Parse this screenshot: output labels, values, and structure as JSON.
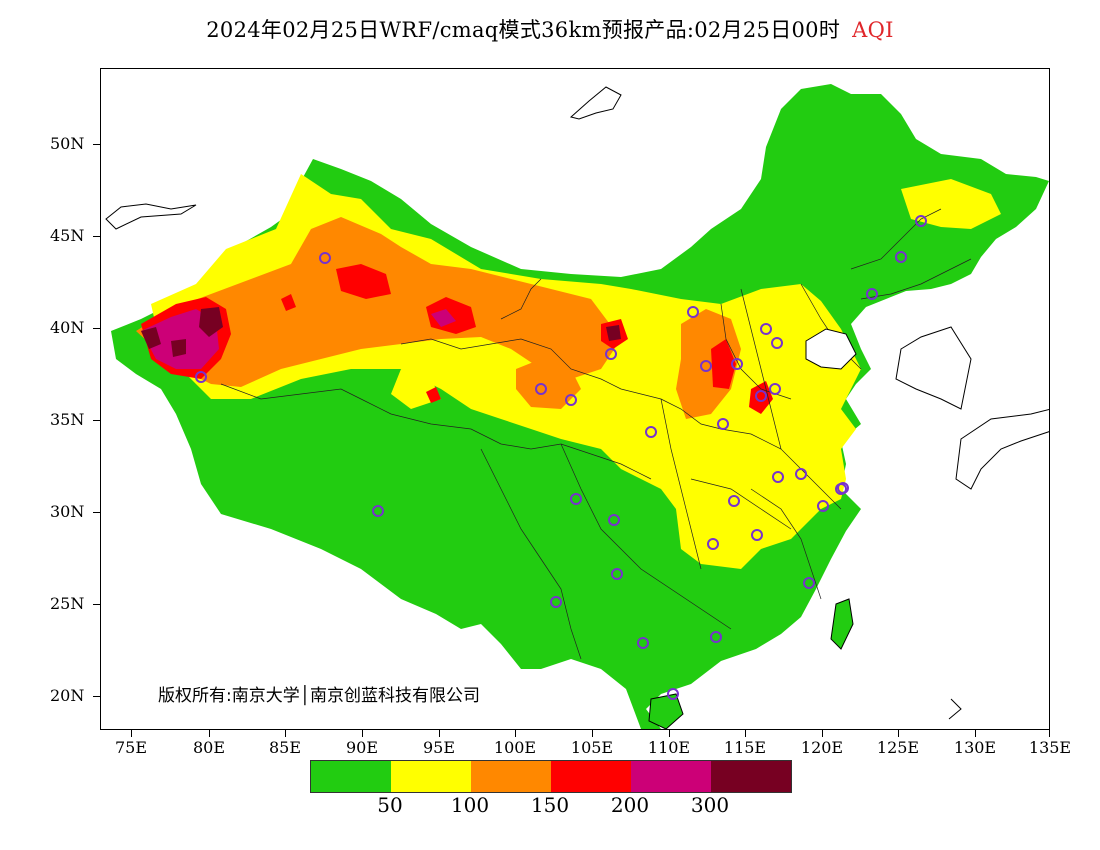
{
  "title": {
    "main": "2024年02月25日WRF/cmaq模式36km预报产品:02月25日00时",
    "variable": "AQI"
  },
  "map": {
    "lat_labels": [
      "50N",
      "45N",
      "40N",
      "35N",
      "30N",
      "25N",
      "20N"
    ],
    "lon_labels": [
      "75E",
      "80E",
      "85E",
      "90E",
      "95E",
      "100E",
      "105E",
      "110E",
      "115E",
      "120E",
      "125E",
      "130E",
      "135E"
    ],
    "copyright": "版权所有:南京大学│南京创蓝科技有限公司"
  },
  "legend": {
    "colors": [
      "#22cc11",
      "#ffff00",
      "#ff8800",
      "#ff0000",
      "#cc0077",
      "#770022"
    ],
    "labels": [
      "50",
      "100",
      "150",
      "200",
      "300"
    ]
  },
  "colors": {
    "station_marker": "#7733cc",
    "title_accent": "#e0262a"
  }
}
